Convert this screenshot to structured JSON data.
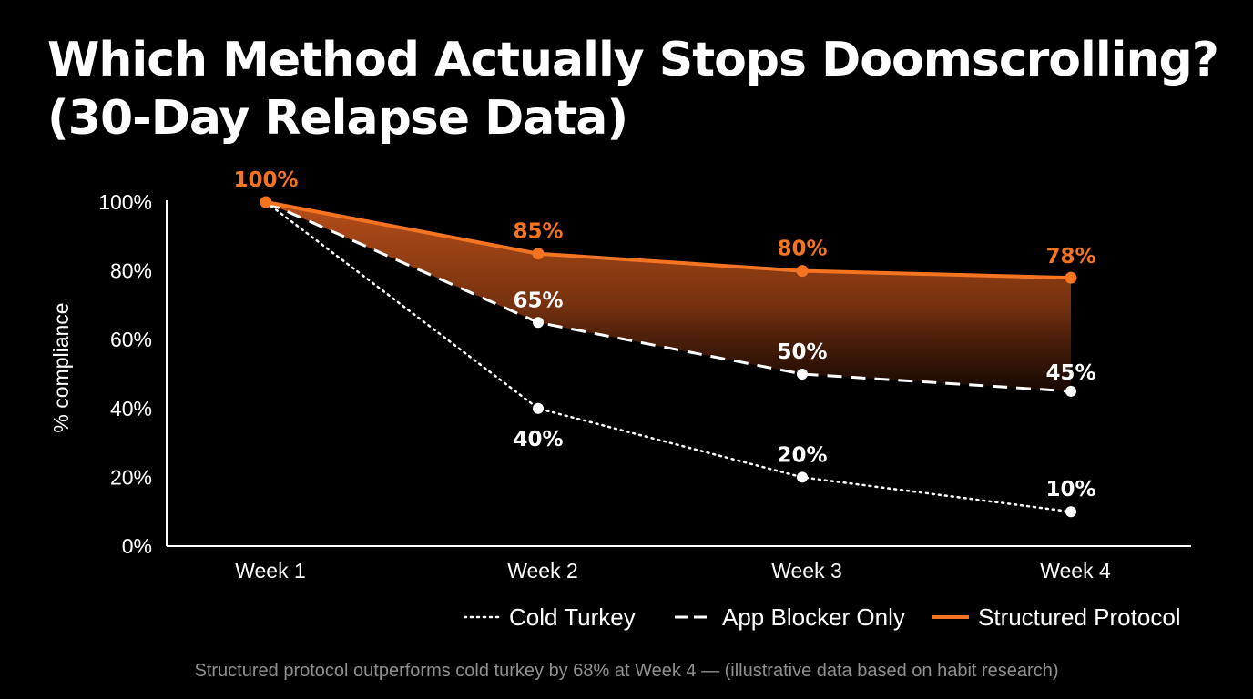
{
  "title": {
    "line1": "Which Method Actually Stops Doomscrolling?",
    "line2": "(30-Day Relapse Data)"
  },
  "footnote": "Structured protocol outperforms cold turkey by 68% at Week 4 — (illustrative data based on habit research)",
  "colors": {
    "background": "#000000",
    "structured": "#f47421",
    "baseline": "#ffffff",
    "footnote": "#8f8f8f"
  },
  "chart_data": {
    "type": "line",
    "categories": [
      "Week 1",
      "Week 2",
      "Week 3",
      "Week 4"
    ],
    "ylabel": "% compliance",
    "ylim": [
      0,
      100
    ],
    "yticks": [
      0,
      20,
      40,
      60,
      80,
      100
    ],
    "ytick_labels": [
      "0%",
      "20%",
      "40%",
      "60%",
      "80%",
      "100%"
    ],
    "grid": false,
    "legend": "bottom-right",
    "fill_between": [
      "Structured Protocol",
      "App Blocker Only"
    ],
    "series": [
      {
        "name": "Cold Turkey",
        "style": "dotted",
        "color": "#ffffff",
        "values": [
          100,
          40,
          20,
          10
        ],
        "labels": [
          "",
          "40%",
          "20%",
          "10%"
        ]
      },
      {
        "name": "App Blocker Only",
        "style": "dashed",
        "color": "#ffffff",
        "values": [
          100,
          65,
          50,
          45
        ],
        "labels": [
          "",
          "65%",
          "50%",
          "45%"
        ]
      },
      {
        "name": "Structured Protocol",
        "style": "solid",
        "color": "#f47421",
        "values": [
          100,
          85,
          80,
          78
        ],
        "labels": [
          "100%",
          "85%",
          "80%",
          "78%"
        ]
      }
    ]
  }
}
